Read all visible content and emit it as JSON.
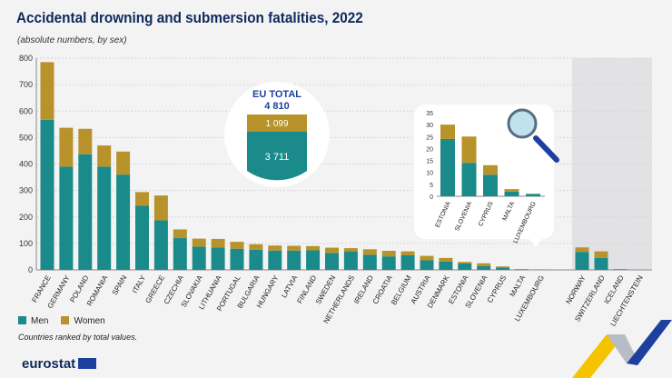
{
  "title": "Accidental drowning and submersion fatalities, 2022",
  "subtitle": "(absolute numbers, by sex)",
  "note": "Countries ranked by total values.",
  "logo": "eurostat",
  "colors": {
    "men": "#1a8a8a",
    "women": "#b8922a",
    "non_eu_shade": "#e2e2e4"
  },
  "eu_total": {
    "label": "EU TOTAL",
    "total": "4 810",
    "women": "1 099",
    "men": "3 711"
  },
  "chart_data": {
    "type": "bar",
    "stacked": true,
    "ylim": [
      0,
      800
    ],
    "yticks": [
      0,
      100,
      200,
      300,
      400,
      500,
      600,
      700,
      800
    ],
    "grid": true,
    "legend": "bottom-left",
    "series": [
      {
        "name": "Men"
      },
      {
        "name": "Women"
      }
    ],
    "categories": [
      "FRANCE",
      "GERMANY",
      "POLAND",
      "ROMANIA",
      "SPAIN",
      "ITALY",
      "GREECE",
      "CZECHIA",
      "SLOVAKIA",
      "LITHUANIA",
      "PORTUGAL",
      "BULGARIA",
      "HUNGARY",
      "LATVIA",
      "FINLAND",
      "SWEDEN",
      "NETHERLANDS",
      "IRELAND",
      "CROATIA",
      "BELGIUM",
      "AUSTRIA",
      "DENMARK",
      "ESTONIA",
      "SLOVENIA",
      "CYPRUS",
      "MALTA",
      "LUXEMBOURG",
      "NORWAY",
      "SWITZERLAND",
      "ICELAND",
      "LIECHTENSTEIN"
    ],
    "men": [
      567,
      390,
      437,
      390,
      360,
      242,
      187,
      120,
      88,
      85,
      80,
      76,
      73,
      73,
      74,
      64,
      70,
      57,
      51,
      55,
      36,
      32,
      24,
      14,
      9,
      2,
      1,
      68,
      45,
      2,
      0
    ],
    "women": [
      218,
      147,
      96,
      80,
      87,
      52,
      94,
      33,
      30,
      32,
      26,
      21,
      19,
      18,
      16,
      20,
      12,
      21,
      21,
      15,
      17,
      13,
      6,
      11,
      4,
      1,
      0,
      17,
      25,
      1,
      0
    ],
    "inset": {
      "categories": [
        "ESTONIA",
        "SLOVENIA",
        "CYPRUS",
        "MALTA",
        "LUXEMBOURG"
      ],
      "men": [
        24,
        14,
        9,
        2,
        1
      ],
      "women": [
        6,
        11,
        4,
        1,
        0
      ],
      "ylim": [
        0,
        35
      ],
      "yticks": [
        0,
        5,
        10,
        15,
        20,
        25,
        30,
        35
      ]
    }
  }
}
